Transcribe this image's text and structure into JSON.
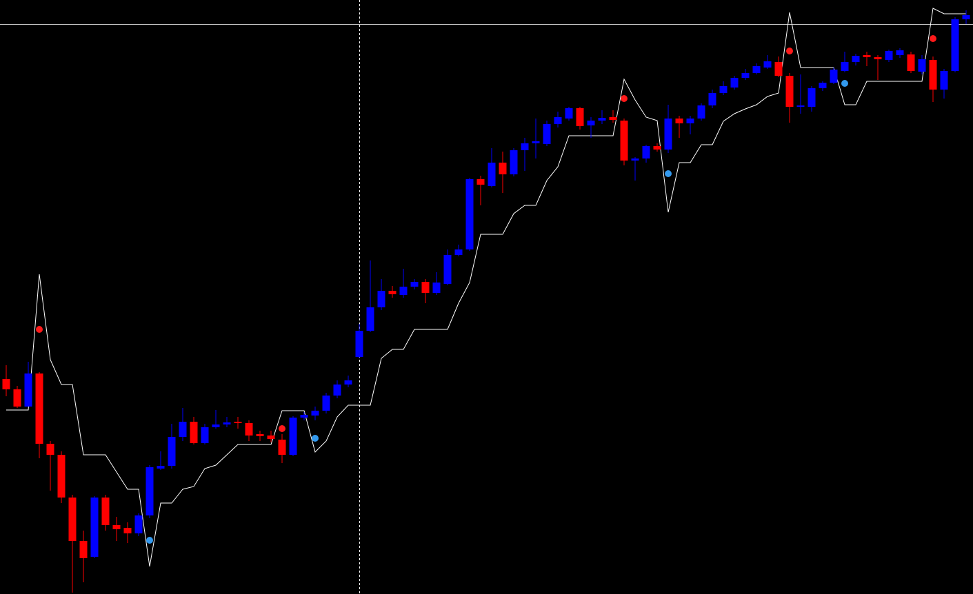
{
  "chart_data": {
    "type": "candlestick",
    "ylim": [
      0,
      862
    ],
    "up_color": "#0000ff",
    "down_color": "#ff0000",
    "open": [
      312,
      297,
      272,
      320,
      218,
      202,
      140,
      77,
      54,
      140,
      100,
      96,
      88,
      114,
      182,
      186,
      228,
      250,
      219,
      242,
      246,
      250,
      248,
      232,
      230,
      224,
      202,
      256,
      259,
      266,
      288,
      304,
      344,
      382,
      416,
      440,
      434,
      446,
      453,
      437,
      450,
      492,
      500,
      602,
      592,
      626,
      609,
      644,
      654,
      653,
      682,
      690,
      705,
      680,
      687,
      692,
      687,
      629,
      632,
      650,
      645,
      690,
      683,
      690,
      709,
      727,
      735,
      749,
      756,
      764,
      772,
      752,
      707,
      707,
      734,
      742,
      759,
      772,
      782,
      779,
      775,
      782,
      783,
      758,
      775,
      732,
      759,
      834
    ],
    "high": [
      332,
      302,
      337,
      322,
      222,
      207,
      144,
      92,
      142,
      144,
      112,
      104,
      117,
      187,
      207,
      247,
      270,
      257,
      247,
      267,
      257,
      257,
      252,
      237,
      237,
      232,
      258,
      264,
      272,
      292,
      310,
      317,
      392,
      484,
      457,
      447,
      472,
      457,
      457,
      467,
      500,
      507,
      604,
      607,
      647,
      642,
      647,
      662,
      690,
      687,
      700,
      707,
      707,
      692,
      702,
      702,
      690,
      634,
      652,
      654,
      710,
      694,
      694,
      712,
      732,
      744,
      752,
      762,
      770,
      782,
      780,
      756,
      754,
      737,
      744,
      764,
      787,
      784,
      787,
      782,
      790,
      792,
      787,
      782,
      780,
      762,
      837,
      847
    ],
    "low": [
      287,
      270,
      272,
      197,
      150,
      132,
      2,
      17,
      52,
      92,
      77,
      74,
      84,
      110,
      180,
      182,
      222,
      217,
      217,
      240,
      242,
      240,
      222,
      222,
      220,
      190,
      200,
      252,
      252,
      262,
      284,
      300,
      342,
      380,
      412,
      430,
      430,
      442,
      422,
      434,
      448,
      490,
      498,
      564,
      590,
      582,
      606,
      614,
      632,
      650,
      677,
      687,
      674,
      662,
      682,
      684,
      622,
      600,
      626,
      642,
      640,
      662,
      667,
      687,
      705,
      724,
      732,
      746,
      754,
      762,
      750,
      684,
      697,
      700,
      730,
      740,
      757,
      767,
      766,
      746,
      772,
      778,
      756,
      754,
      714,
      719,
      757,
      827
    ],
    "close": [
      297,
      272,
      320,
      218,
      202,
      140,
      77,
      52,
      140,
      100,
      94,
      88,
      114,
      184,
      186,
      228,
      250,
      219,
      242,
      246,
      249,
      248,
      230,
      229,
      225,
      202,
      256,
      260,
      266,
      288,
      304,
      310,
      382,
      416,
      440,
      435,
      446,
      453,
      437,
      452,
      492,
      500,
      602,
      594,
      626,
      609,
      644,
      654,
      657,
      682,
      692,
      705,
      679,
      687,
      691,
      688,
      629,
      632,
      650,
      645,
      690,
      683,
      690,
      709,
      727,
      737,
      749,
      756,
      766,
      773,
      752,
      707,
      709,
      734,
      742,
      761,
      772,
      781,
      779,
      776,
      788,
      789,
      759,
      776,
      732,
      759,
      834,
      840
    ],
    "trail": {
      "color": "#ffffff",
      "values": [
        267,
        267,
        267,
        464,
        340,
        304,
        304,
        202,
        202,
        202,
        177,
        152,
        152,
        40,
        132,
        132,
        152,
        156,
        182,
        187,
        202,
        217,
        217,
        217,
        217,
        266,
        266,
        266,
        206,
        222,
        257,
        274,
        274,
        274,
        342,
        355,
        355,
        384,
        384,
        384,
        384,
        422,
        452,
        522,
        522,
        522,
        552,
        564,
        564,
        600,
        620,
        665,
        665,
        665,
        665,
        665,
        747,
        717,
        692,
        687,
        554,
        626,
        626,
        652,
        652,
        686,
        697,
        704,
        710,
        722,
        727,
        844,
        764,
        764,
        764,
        764,
        710,
        710,
        744,
        744,
        744,
        744,
        744,
        744,
        850,
        842,
        842,
        842
      ]
    },
    "sell_signals": {
      "color": "#ff1a1a",
      "values": [
        null,
        null,
        null,
        384,
        null,
        null,
        null,
        null,
        null,
        null,
        null,
        null,
        null,
        null,
        null,
        null,
        null,
        null,
        null,
        null,
        null,
        null,
        null,
        null,
        null,
        240,
        null,
        null,
        null,
        null,
        null,
        null,
        null,
        null,
        null,
        null,
        null,
        null,
        null,
        null,
        null,
        null,
        null,
        null,
        null,
        null,
        null,
        null,
        null,
        null,
        null,
        null,
        null,
        null,
        null,
        null,
        719,
        null,
        null,
        null,
        null,
        null,
        null,
        null,
        null,
        null,
        null,
        null,
        null,
        null,
        null,
        788,
        null,
        null,
        null,
        null,
        null,
        null,
        null,
        null,
        null,
        null,
        null,
        null,
        806,
        null,
        null,
        null
      ]
    },
    "buy_signals": {
      "color": "#3399ee",
      "values": [
        null,
        null,
        null,
        null,
        null,
        null,
        null,
        null,
        null,
        null,
        null,
        null,
        null,
        78,
        null,
        null,
        null,
        null,
        null,
        null,
        null,
        null,
        null,
        null,
        null,
        null,
        null,
        null,
        226,
        null,
        null,
        null,
        null,
        null,
        null,
        null,
        null,
        null,
        null,
        null,
        null,
        null,
        null,
        null,
        null,
        null,
        null,
        null,
        null,
        null,
        null,
        null,
        null,
        null,
        null,
        null,
        null,
        null,
        null,
        null,
        610,
        null,
        null,
        null,
        null,
        null,
        null,
        null,
        null,
        null,
        null,
        null,
        null,
        null,
        null,
        null,
        741,
        null,
        null,
        null,
        null,
        null,
        null,
        null,
        null,
        null,
        null,
        null
      ]
    },
    "hline": {
      "color": "#c0c0c0",
      "value": 827
    }
  }
}
